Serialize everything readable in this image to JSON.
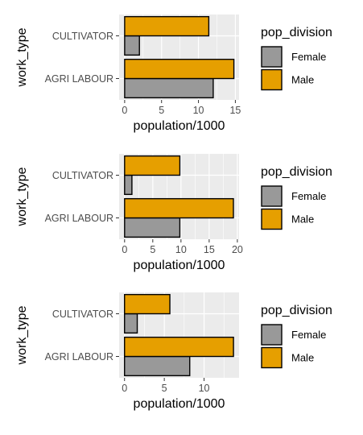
{
  "chart_data": [
    {
      "type": "bar",
      "orientation": "horizontal",
      "position": "dodge",
      "categories": [
        "CULTIVATOR",
        "AGRI LABOUR"
      ],
      "series": [
        {
          "name": "Female",
          "values": [
            2,
            12
          ]
        },
        {
          "name": "Male",
          "values": [
            11.4,
            14.8
          ]
        }
      ],
      "xlabel": "population/1000",
      "ylabel": "work_type",
      "xlim": [
        -0.75,
        15.5
      ],
      "xticks": [
        0,
        5,
        10,
        15
      ],
      "xtick_labels": [
        "0",
        "5",
        "10",
        "15"
      ],
      "grid": true,
      "legend_title": "pop_division",
      "legend_position": "right",
      "colors": {
        "Female": "#999999",
        "Male": "#E69F00"
      }
    },
    {
      "type": "bar",
      "orientation": "horizontal",
      "position": "dodge",
      "categories": [
        "CULTIVATOR",
        "AGRI LABOUR"
      ],
      "series": [
        {
          "name": "Female",
          "values": [
            1.3,
            9.8
          ]
        },
        {
          "name": "Male",
          "values": [
            9.8,
            19.3
          ]
        }
      ],
      "xlabel": "population/1000",
      "ylabel": "work_type",
      "xlim": [
        -0.97,
        20.3
      ],
      "xticks": [
        0,
        5,
        10,
        15,
        20
      ],
      "xtick_labels": [
        "0",
        "5",
        "10",
        "15",
        "20"
      ],
      "grid": true,
      "legend_title": "pop_division",
      "legend_position": "right",
      "colors": {
        "Female": "#999999",
        "Male": "#E69F00"
      }
    },
    {
      "type": "bar",
      "orientation": "horizontal",
      "position": "dodge",
      "categories": [
        "CULTIVATOR",
        "AGRI LABOUR"
      ],
      "series": [
        {
          "name": "Female",
          "values": [
            1.6,
            8.2
          ]
        },
        {
          "name": "Male",
          "values": [
            5.7,
            13.7
          ]
        }
      ],
      "xlabel": "population/1000",
      "ylabel": "work_type",
      "xlim": [
        -0.68,
        14.4
      ],
      "xticks": [
        0,
        5,
        10
      ],
      "xtick_labels": [
        "0",
        "5",
        "10"
      ],
      "grid": true,
      "legend_title": "pop_division",
      "legend_position": "right",
      "colors": {
        "Female": "#999999",
        "Male": "#E69F00"
      }
    }
  ]
}
